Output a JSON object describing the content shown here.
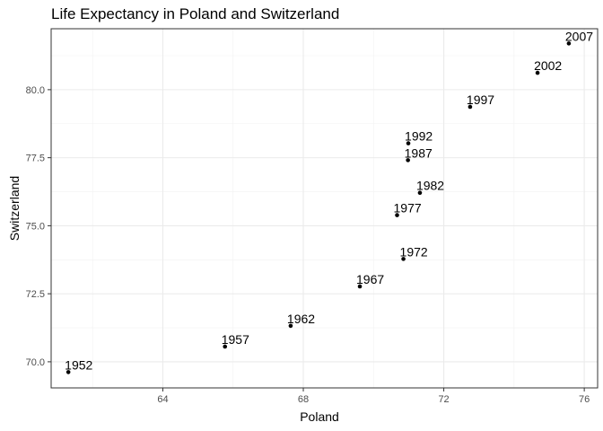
{
  "chart_data": {
    "type": "scatter",
    "title": "Life Expectancy in Poland and Switzerland",
    "xlabel": "Poland",
    "ylabel": "Switzerland",
    "xlim": [
      60.82,
      76.38
    ],
    "ylim": [
      69.04,
      82.24
    ],
    "x_ticks": [
      64,
      68,
      72,
      76
    ],
    "y_ticks": [
      70.0,
      72.5,
      75.0,
      77.5,
      80.0
    ],
    "y_tick_labels": [
      "70.0",
      "72.5",
      "75.0",
      "77.5",
      "80.0"
    ],
    "grid": true,
    "points": [
      {
        "label": "1952",
        "x": 61.31,
        "y": 69.62
      },
      {
        "label": "1957",
        "x": 65.77,
        "y": 70.56
      },
      {
        "label": "1962",
        "x": 67.64,
        "y": 71.32
      },
      {
        "label": "1967",
        "x": 69.61,
        "y": 72.77
      },
      {
        "label": "1972",
        "x": 70.85,
        "y": 73.78
      },
      {
        "label": "1977",
        "x": 70.67,
        "y": 75.39
      },
      {
        "label": "1982",
        "x": 71.32,
        "y": 76.21
      },
      {
        "label": "1987",
        "x": 70.98,
        "y": 77.41
      },
      {
        "label": "1992",
        "x": 70.99,
        "y": 78.03
      },
      {
        "label": "1997",
        "x": 72.75,
        "y": 79.37
      },
      {
        "label": "2002",
        "x": 74.67,
        "y": 80.62
      },
      {
        "label": "2007",
        "x": 75.56,
        "y": 81.7
      }
    ]
  }
}
